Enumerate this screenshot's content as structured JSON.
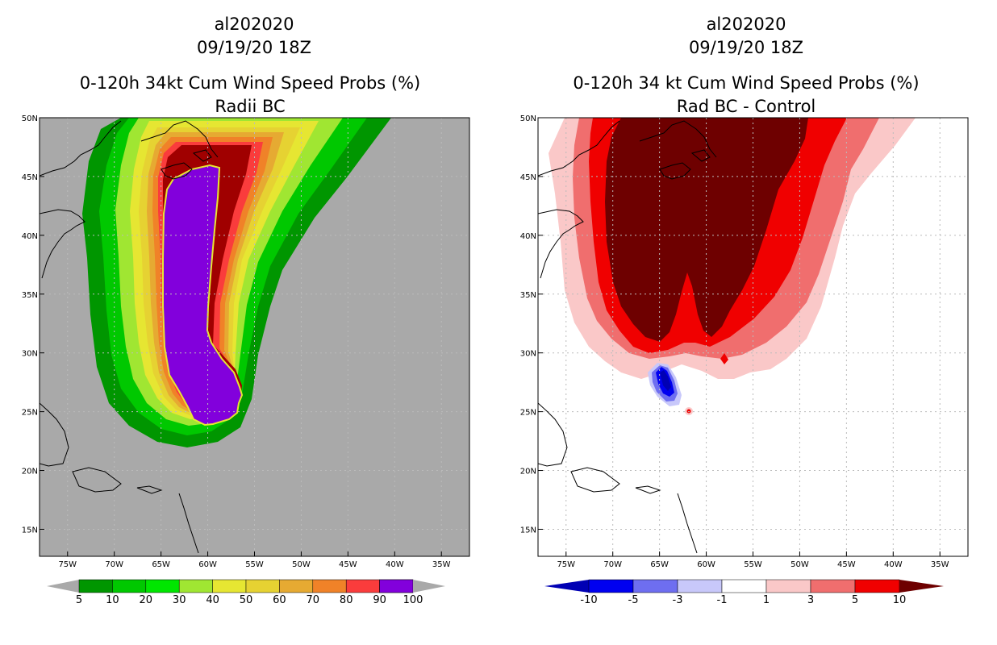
{
  "left_panel": {
    "storm_id": "al202020",
    "datetime": "09/19/20 18Z",
    "title": "0-120h 34kt Cum Wind Speed Probs (%)",
    "subtitle": "Radii BC",
    "colorbar": {
      "labels": [
        "5",
        "10",
        "20",
        "30",
        "40",
        "50",
        "60",
        "70",
        "80",
        "90",
        "100"
      ],
      "colors": [
        "#009600",
        "#00c800",
        "#00e600",
        "#a0e632",
        "#e6e632",
        "#e6d232",
        "#e6aa32",
        "#f08228",
        "#fa3c3c",
        "#a00000",
        "#8200dc"
      ]
    }
  },
  "right_panel": {
    "storm_id": "al202020",
    "datetime": "09/19/20 18Z",
    "title": "0-120h 34 kt Cum Wind Speed Probs (%)",
    "subtitle": "Rad BC - Control",
    "colorbar": {
      "labels": [
        "-10",
        "-5",
        "-3",
        "-1",
        "1",
        "3",
        "5",
        "10"
      ],
      "colors": [
        "#0000b4",
        "#0000f0",
        "#6e6ef0",
        "#c8c8fa",
        "#ffffff",
        "#fac8c8",
        "#f06e6e",
        "#f00000",
        "#6e0000"
      ]
    }
  },
  "axes": {
    "lon_labels": [
      "75W",
      "70W",
      "65W",
      "60W",
      "55W",
      "50W",
      "45W",
      "40W",
      "35W"
    ],
    "lat_labels": [
      "15N",
      "20N",
      "25N",
      "30N",
      "35N",
      "40N",
      "45N",
      "50N"
    ]
  },
  "colors": {
    "land_bg": "#a9a9a9",
    "grid": "#bbbbbb"
  }
}
